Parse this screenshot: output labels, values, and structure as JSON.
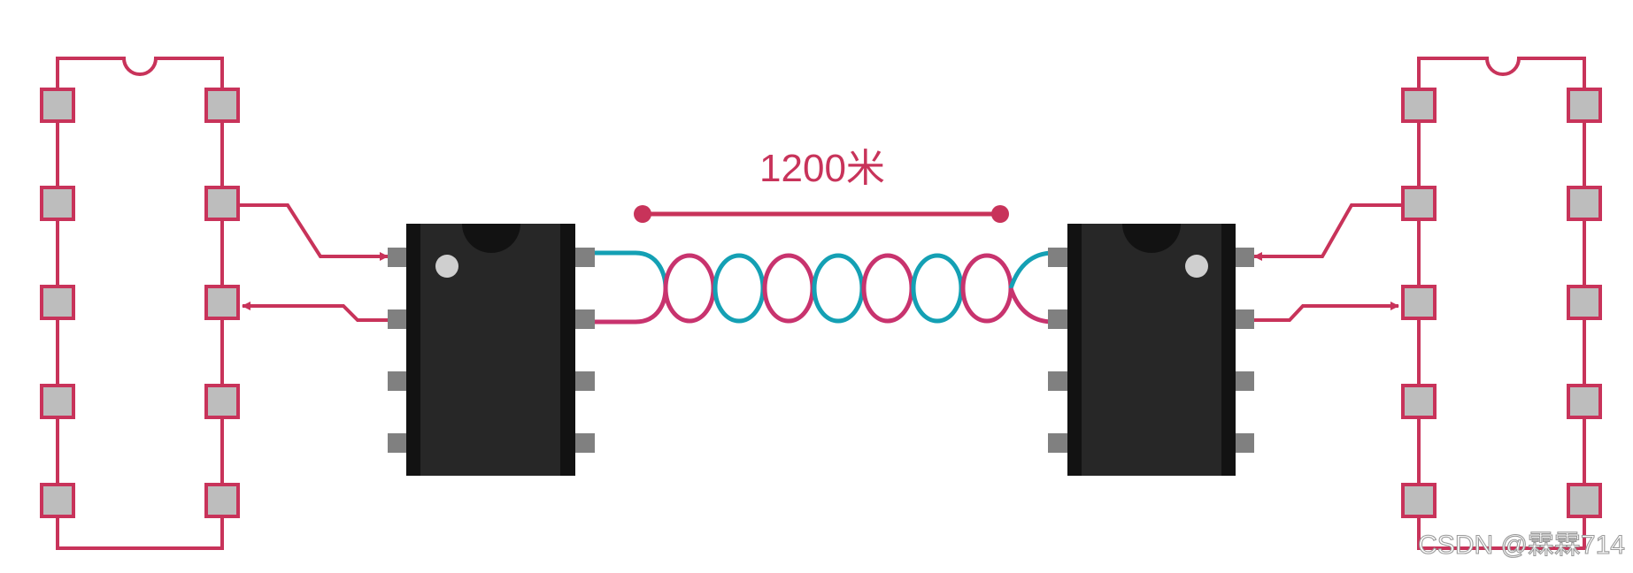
{
  "diagram": {
    "distance_label": "1200米",
    "watermark": "CSDN @霖霖714"
  },
  "colors": {
    "accent": "#c8335a",
    "wire_a": "#14a0b4",
    "wire_b": "#c8336e",
    "chip_body": "#272727",
    "chip_dark": "#121212",
    "pin_gray": "#808080",
    "pad_fill": "#bdbdbd"
  },
  "components": {
    "left_mcu": {
      "pins_per_side": 5,
      "has_notch": true
    },
    "right_mcu": {
      "pins_per_side": 5,
      "has_notch": true
    },
    "left_transceiver": {
      "pins_per_side": 4,
      "color": "black"
    },
    "right_transceiver": {
      "pins_per_side": 4,
      "color": "black"
    },
    "twisted_pair": {
      "loops": 7
    }
  }
}
